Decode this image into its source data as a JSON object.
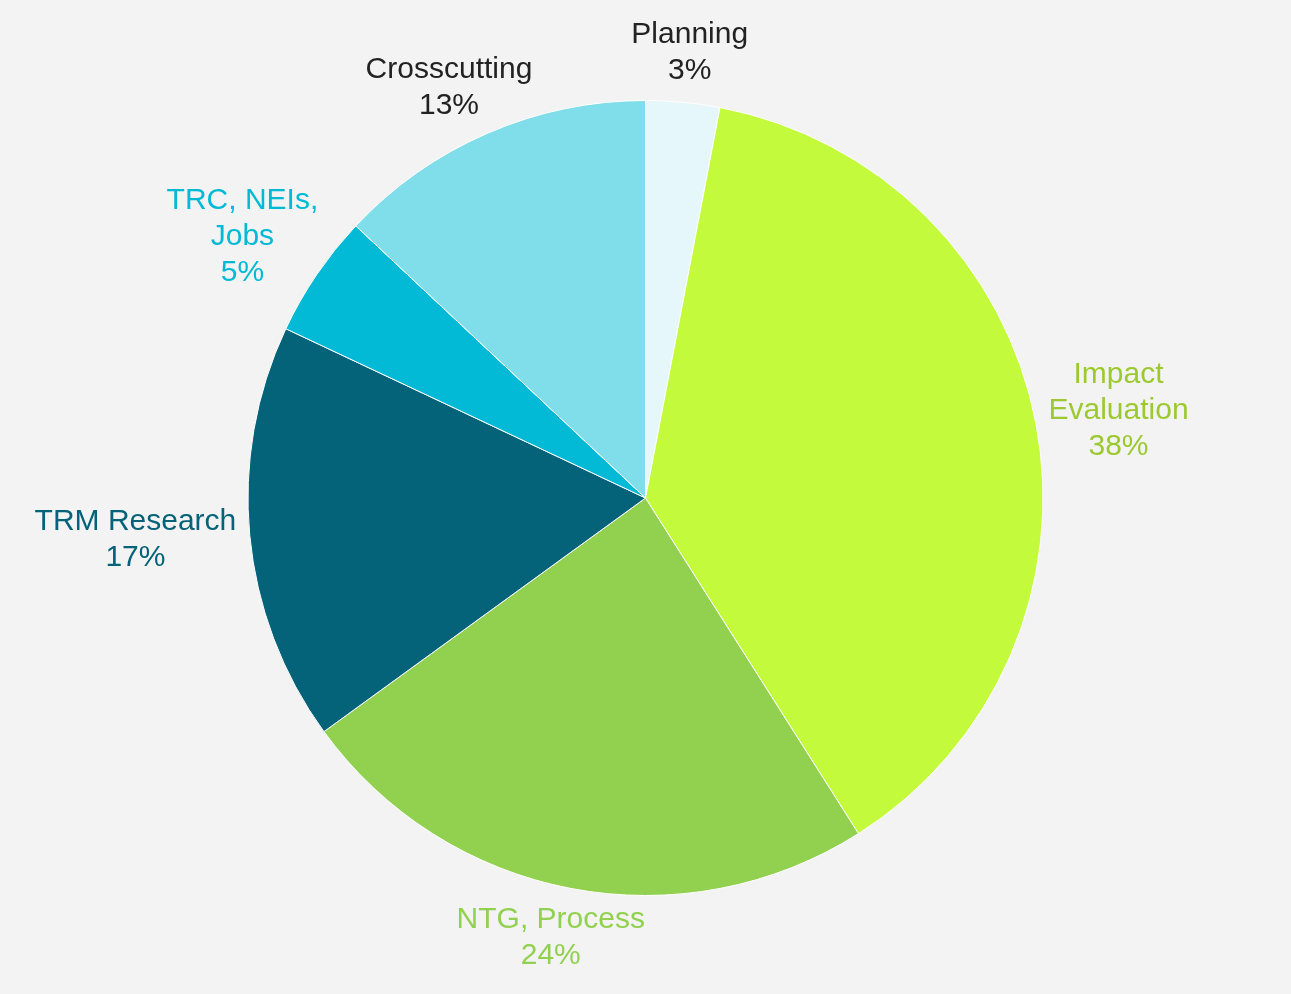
{
  "chart_data": {
    "type": "pie",
    "categories": [
      "Planning",
      "Impact Evaluation",
      "NTG, Process",
      "TRM Research",
      "TRC, NEIs, Jobs",
      "Crosscutting"
    ],
    "values": [
      3,
      38,
      24,
      17,
      5,
      13
    ],
    "colors": [
      "#e6f7fb",
      "#c3fb3c",
      "#92d050",
      "#046378",
      "#02b9d6",
      "#80deea"
    ],
    "value_labels": [
      "3%",
      "38%",
      "24%",
      "17%",
      "5%",
      "13%"
    ],
    "legend": false
  }
}
